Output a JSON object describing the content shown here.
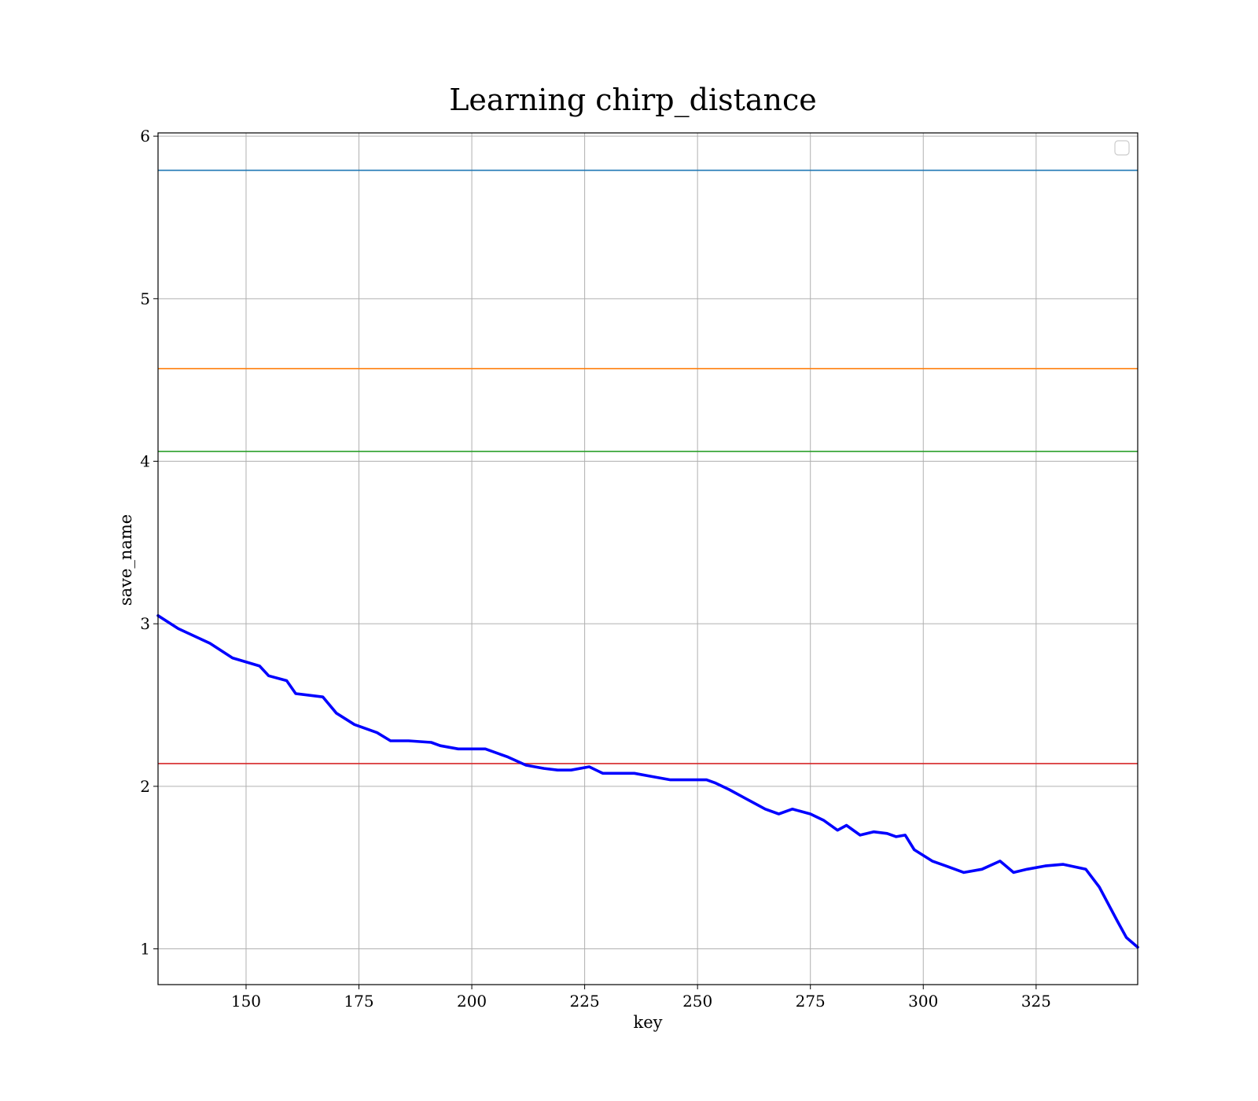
{
  "chart_data": {
    "type": "line",
    "title": "Learning chirp_distance",
    "xlabel": "key",
    "ylabel": "save_name",
    "xlim": [
      130.5,
      347.5
    ],
    "ylim": [
      0.78,
      6.02
    ],
    "x_ticks": [
      150,
      175,
      200,
      225,
      250,
      275,
      300,
      325
    ],
    "y_ticks": [
      1,
      2,
      3,
      4,
      5,
      6
    ],
    "grid": true,
    "legend": {
      "location": "top-right",
      "entries": []
    },
    "reference_lines": [
      {
        "y": 5.79,
        "color": "#1f77b4"
      },
      {
        "y": 4.57,
        "color": "#ff7f0e"
      },
      {
        "y": 4.06,
        "color": "#2ca02c"
      },
      {
        "y": 2.14,
        "color": "#d62728"
      }
    ],
    "series": [
      {
        "color": "#0000ff",
        "x": [
          130.5,
          135,
          142,
          147,
          153,
          155,
          159,
          161,
          167,
          170,
          174,
          179,
          182,
          186,
          191,
          193,
          197,
          203,
          208,
          212,
          216,
          219,
          222,
          226,
          229,
          233,
          236,
          240,
          244,
          247,
          252,
          254,
          257,
          261,
          265,
          268,
          271,
          275,
          278,
          281,
          283,
          286,
          289,
          292,
          294,
          296,
          298,
          302,
          305,
          309,
          313,
          317,
          320,
          323,
          327,
          331,
          336,
          339,
          343,
          345,
          347.5
        ],
        "y": [
          3.05,
          2.97,
          2.88,
          2.79,
          2.74,
          2.68,
          2.65,
          2.57,
          2.55,
          2.45,
          2.38,
          2.33,
          2.28,
          2.28,
          2.27,
          2.25,
          2.23,
          2.23,
          2.18,
          2.13,
          2.11,
          2.1,
          2.1,
          2.12,
          2.08,
          2.08,
          2.08,
          2.06,
          2.04,
          2.04,
          2.04,
          2.02,
          1.98,
          1.92,
          1.86,
          1.83,
          1.86,
          1.83,
          1.79,
          1.73,
          1.76,
          1.7,
          1.72,
          1.71,
          1.69,
          1.7,
          1.61,
          1.54,
          1.51,
          1.47,
          1.49,
          1.54,
          1.47,
          1.49,
          1.51,
          1.52,
          1.49,
          1.38,
          1.17,
          1.07,
          1.01
        ]
      }
    ]
  }
}
